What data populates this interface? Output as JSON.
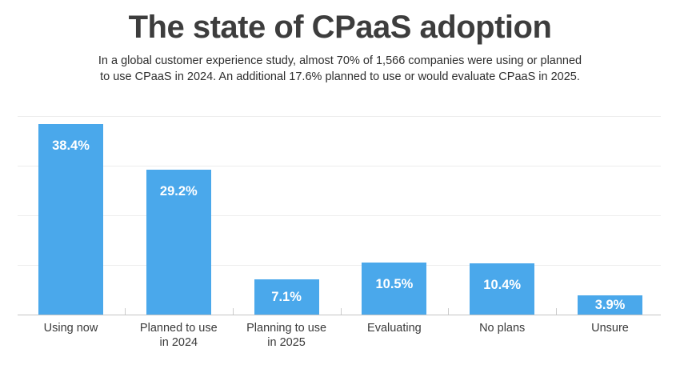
{
  "header": {
    "title": "The state of CPaaS adoption",
    "subtitle_line1": "In a global customer experience study, almost 70% of 1,566 companies were using or planned",
    "subtitle_line2": "to use CPaaS in 2024. An additional 17.6% planned to use or would evaluate CPaaS in 2025."
  },
  "chart_data": {
    "type": "bar",
    "title": "The state of CPaaS adoption",
    "categories": [
      "Using now",
      "Planned to use in 2024",
      "Planning to use in 2025",
      "Evaluating",
      "No plans",
      "Unsure"
    ],
    "values": [
      38.4,
      29.2,
      7.1,
      10.5,
      10.4,
      3.9
    ],
    "value_labels": [
      "38.4%",
      "29.2%",
      "7.1%",
      "10.5%",
      "10.4%",
      "3.9%"
    ],
    "xlabel": "",
    "ylabel": "",
    "ylim": [
      0,
      40
    ],
    "gridlines": [
      10,
      20,
      30,
      40
    ],
    "grid": true,
    "legend": false,
    "bar_color": "#4aa8eb",
    "value_label_color": "#ffffff",
    "gridline_color": "#ededed",
    "axis_color": "#c4c4c4",
    "text_color": "#3a3a3a"
  }
}
